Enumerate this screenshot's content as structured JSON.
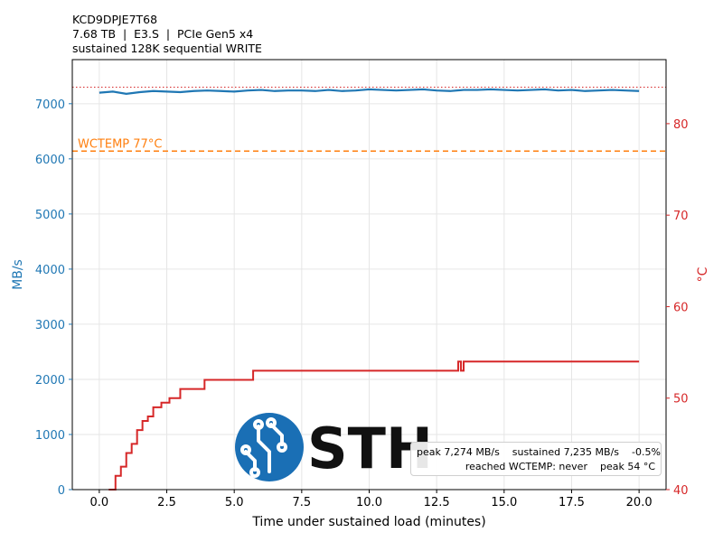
{
  "header": {
    "line1": "KCD9DPJE7T68",
    "line2": "7.68 TB  |  E3.S  |  PCIe Gen5 x4",
    "line3": "sustained 128K sequential WRITE"
  },
  "logo": {
    "text": "STH"
  },
  "stats": {
    "line1": "peak 7,274 MB/s    sustained 7,235 MB/s    -0.5%",
    "line2": "reached WCTEMP: never    peak 54 °C"
  },
  "colors": {
    "throughput": "#1f77b4",
    "temperature": "#d62728",
    "wctemp": "#ff7f0e",
    "grid": "#e6e6e6",
    "logo_blue": "#1a6fb5"
  },
  "chart_data": {
    "type": "line",
    "xlabel": "Time under sustained load (minutes)",
    "ylabel": "MB/s",
    "y2label": "°C",
    "xlim": [
      -1.0,
      21.0
    ],
    "ylim": [
      0,
      7800
    ],
    "y2lim": [
      40,
      87
    ],
    "xticks": [
      "0.0",
      "2.5",
      "5.0",
      "7.5",
      "10.0",
      "12.5",
      "15.0",
      "17.5",
      "20.0"
    ],
    "xtick_values": [
      0,
      2.5,
      5,
      7.5,
      10,
      12.5,
      15,
      17.5,
      20
    ],
    "yticks": [
      "0",
      "1000",
      "2000",
      "3000",
      "4000",
      "5000",
      "6000",
      "7000"
    ],
    "ytick_values": [
      0,
      1000,
      2000,
      3000,
      4000,
      5000,
      6000,
      7000
    ],
    "y2ticks": [
      "40",
      "50",
      "60",
      "70",
      "80"
    ],
    "y2tick_values": [
      40,
      50,
      60,
      70,
      80
    ],
    "grid": true,
    "wctemp_line": {
      "label": "WCTEMP 77°C",
      "value": 77
    },
    "peak_line": {
      "value": 7300
    },
    "series": [
      {
        "axis": "left",
        "x": [
          0,
          0.5,
          1.0,
          1.5,
          2.0,
          2.5,
          3.0,
          3.5,
          4.0,
          4.5,
          5.0,
          5.5,
          6.0,
          6.5,
          7.0,
          7.5,
          8.0,
          8.5,
          9.0,
          9.5,
          10.0,
          10.5,
          11.0,
          11.5,
          12.0,
          12.5,
          13.0,
          13.5,
          14.0,
          14.5,
          15.0,
          15.5,
          16.0,
          16.5,
          17.0,
          17.5,
          18.0,
          18.5,
          19.0,
          19.5,
          20.0
        ],
        "values": [
          7200,
          7220,
          7180,
          7210,
          7230,
          7220,
          7210,
          7230,
          7240,
          7230,
          7220,
          7240,
          7250,
          7230,
          7240,
          7240,
          7230,
          7250,
          7230,
          7240,
          7260,
          7250,
          7240,
          7250,
          7260,
          7240,
          7230,
          7250,
          7250,
          7260,
          7250,
          7240,
          7250,
          7260,
          7240,
          7250,
          7230,
          7240,
          7250,
          7240,
          7230
        ]
      },
      {
        "axis": "right",
        "x": [
          0.35,
          0.6,
          0.8,
          1.0,
          1.2,
          1.4,
          1.6,
          1.8,
          2.0,
          2.3,
          2.6,
          3.0,
          3.5,
          3.9,
          5.7,
          7.0,
          10.0,
          13.2,
          13.3,
          13.4,
          13.5,
          15.0,
          18.0,
          20.0
        ],
        "values": [
          40,
          41.5,
          42.5,
          44,
          45,
          46.5,
          47.5,
          48,
          49,
          49.5,
          50,
          51,
          51,
          52,
          53,
          53,
          53,
          53,
          54,
          53,
          54,
          54,
          54,
          54
        ]
      }
    ]
  }
}
